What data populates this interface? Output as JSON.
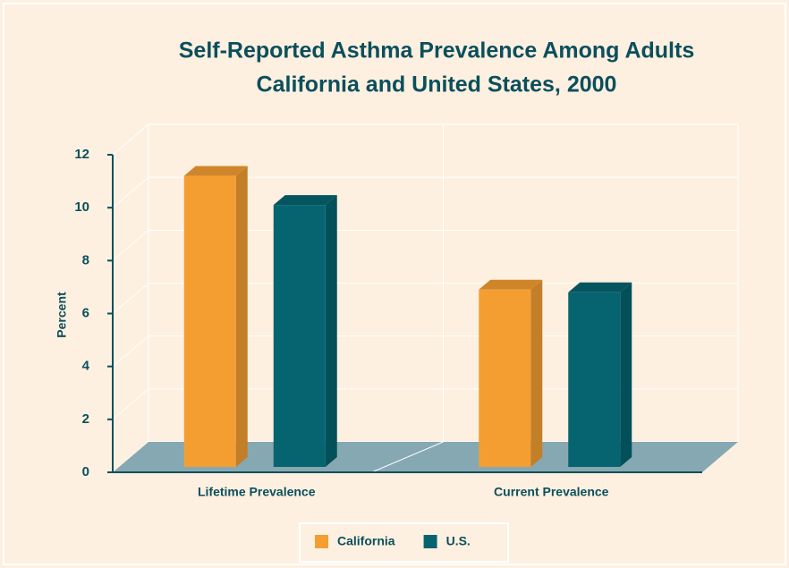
{
  "chart_data": {
    "type": "bar3d",
    "title": "Self-Reported Asthma Prevalence Among Adults",
    "subtitle": "California and United States, 2000",
    "ylabel": "Percent",
    "categories": [
      "Lifetime Prevalence",
      "Current Prevalence"
    ],
    "series": [
      {
        "name": "California",
        "color": "#f49e32",
        "values": [
          11.0,
          6.7
        ]
      },
      {
        "name": "U.S.",
        "color": "#056470",
        "values": [
          9.9,
          6.6
        ]
      }
    ],
    "ylim": [
      0,
      12
    ],
    "yticks": [
      0,
      2,
      4,
      6,
      8,
      10,
      12
    ],
    "grid": true,
    "legend": "bottom"
  }
}
